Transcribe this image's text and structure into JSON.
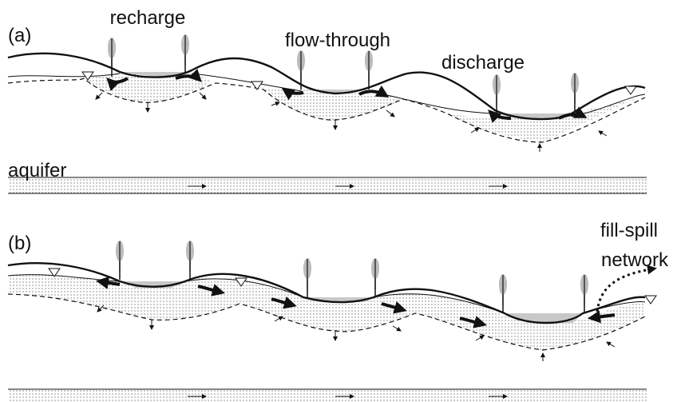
{
  "panel_a": {
    "label": "(a)",
    "zones": [
      "recharge",
      "flow-through",
      "discharge"
    ],
    "aquifer": "aquifer"
  },
  "panel_b": {
    "label": "(b)",
    "network": [
      "fill-spill",
      "network"
    ]
  }
}
